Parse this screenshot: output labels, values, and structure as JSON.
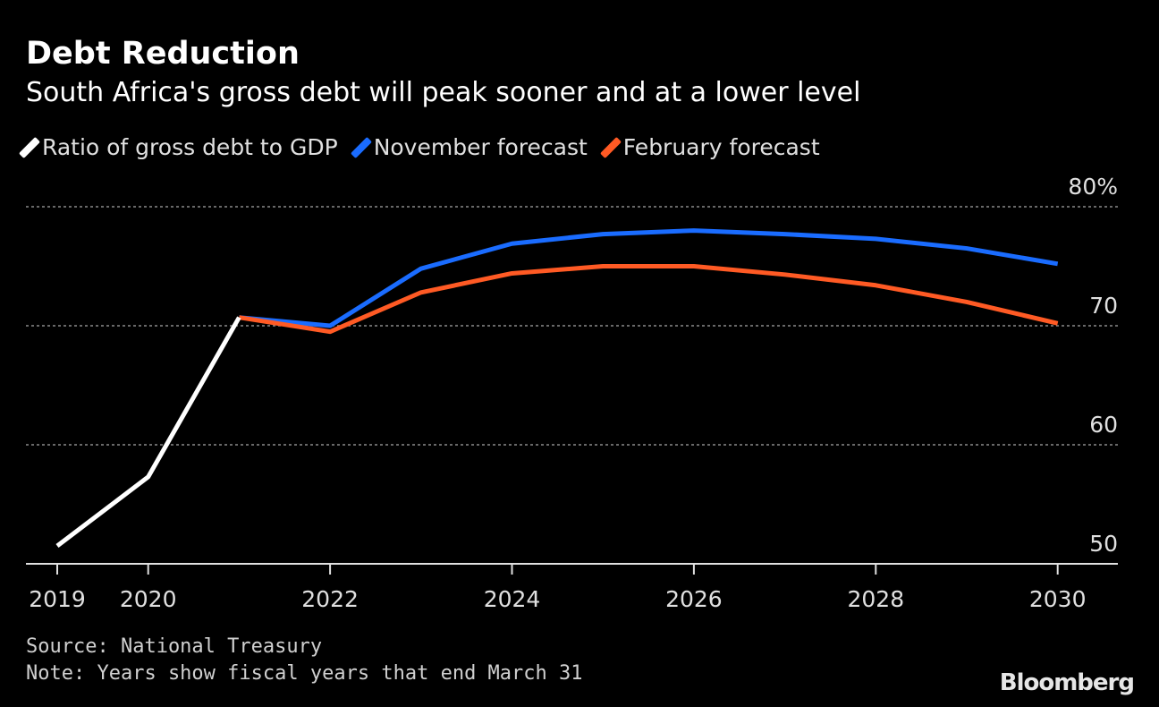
{
  "chart_data": {
    "type": "line",
    "title": "Debt Reduction",
    "subtitle": "South Africa's gross debt will peak sooner and at a lower level",
    "x_ticks": [
      "2019",
      "2020",
      "2022",
      "2024",
      "2026",
      "2028",
      "2030"
    ],
    "y_ticks": [
      "50",
      "60",
      "70",
      "80%"
    ],
    "ylim": [
      50,
      80
    ],
    "xlim": [
      2019,
      2030
    ],
    "grid": true,
    "legend_placement": "top-left",
    "series": [
      {
        "name": "Ratio of gross debt to GDP",
        "color": "#ffffff",
        "x": [
          2019,
          2020,
          2021
        ],
        "y": [
          51.5,
          57.3,
          70.7
        ]
      },
      {
        "name": "November forecast",
        "color": "#1a6cff",
        "x": [
          2021,
          2022,
          2023,
          2024,
          2025,
          2026,
          2027,
          2028,
          2029,
          2030
        ],
        "y": [
          70.7,
          70.0,
          74.8,
          76.9,
          77.7,
          78.0,
          77.7,
          77.3,
          76.5,
          75.2
        ]
      },
      {
        "name": "February forecast",
        "color": "#ff5a24",
        "x": [
          2021,
          2022,
          2023,
          2024,
          2025,
          2026,
          2027,
          2028,
          2029,
          2030
        ],
        "y": [
          70.7,
          69.5,
          72.8,
          74.4,
          75.0,
          75.0,
          74.3,
          73.4,
          72.0,
          70.2
        ]
      }
    ]
  },
  "footer": {
    "source": "Source: National Treasury",
    "note": "Note: Years show fiscal years that end March 31"
  },
  "brand": "Bloomberg"
}
